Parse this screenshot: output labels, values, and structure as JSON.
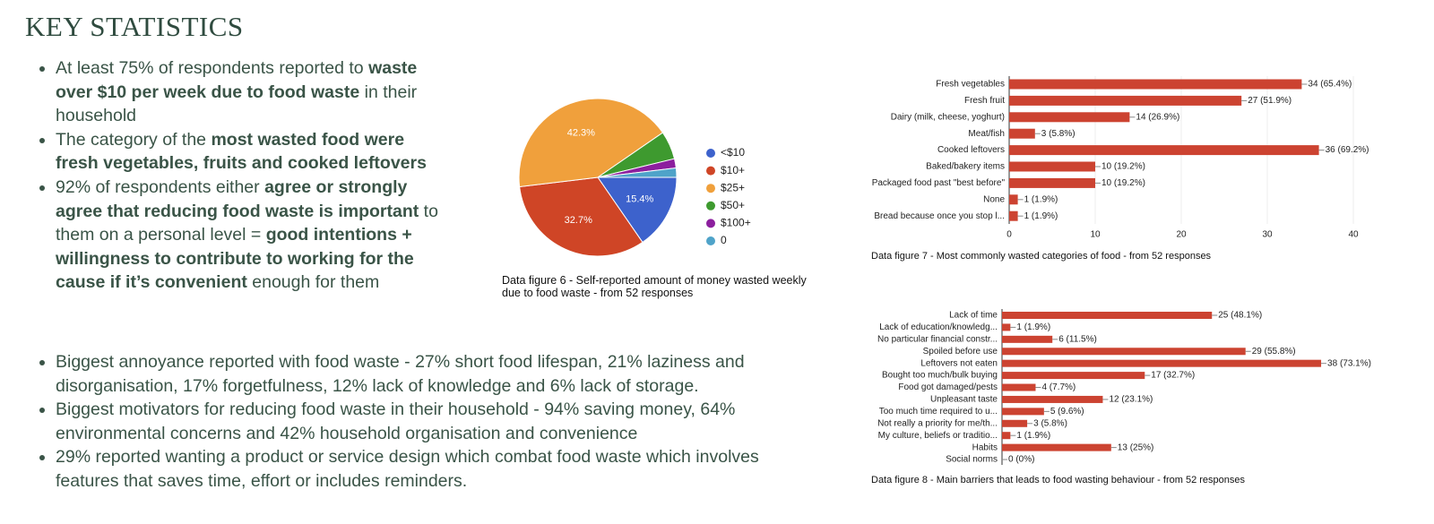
{
  "title": "KEY STATISTICS",
  "bullets": [
    [
      {
        "text": "At least 75% of respondents reported to ",
        "bold": false
      },
      {
        "text": "waste over $10 per week due to food waste",
        "bold": true
      },
      {
        "text": " in their household",
        "bold": false
      }
    ],
    [
      {
        "text": "The category of the ",
        "bold": false
      },
      {
        "text": "most wasted food were fresh vegetables, fruits and cooked leftovers",
        "bold": true
      }
    ],
    [
      {
        "text": "92% of respondents either ",
        "bold": false
      },
      {
        "text": "agree or strongly agree that reducing food waste is important",
        "bold": true
      },
      {
        "text": " to them on a personal level = ",
        "bold": false
      },
      {
        "text": "good intentions + willingness to contribute to working for the cause if it’s convenient",
        "bold": true
      },
      {
        "text": " enough for them",
        "bold": false
      }
    ],
    [
      {
        "text": "Biggest annoyance reported with food waste - 27% short food lifespan, 21% laziness and disorganisation, 17% forgetfulness, 12% lack of knowledge and 6% lack of storage.",
        "bold": false
      }
    ],
    [
      {
        "text": "Biggest motivators for reducing food waste in their household - 94% saving money, 64% environmental concerns and 42% household organisation and convenience",
        "bold": false
      }
    ],
    [
      {
        "text": "29% reported wanting a product or service design which combat food waste which involves features that saves time, effort or includes reminders.",
        "bold": false
      }
    ]
  ],
  "chart_data": [
    {
      "type": "pie",
      "caption": "Data figure 6 - Self-reported amount of money wasted weekly due to food waste - from 52 responses",
      "categories": [
        "<$10",
        "$10+",
        "$25+",
        "$50+",
        "$100+",
        "0"
      ],
      "values": [
        15.4,
        32.7,
        42.3,
        5.8,
        1.9,
        1.9
      ],
      "value_labels": [
        "15.4%",
        "32.7%",
        "42.3%",
        null,
        null,
        null
      ],
      "colors": [
        "#3d62cc",
        "#cf4526",
        "#f0a03c",
        "#3e9a2f",
        "#8c1f9e",
        "#4fa3c9"
      ]
    },
    {
      "type": "hbar",
      "caption": "Data figure 7 - Most commonly wasted categories of food - from 52 responses",
      "categories": [
        "Fresh vegetables",
        "Fresh fruit",
        "Dairy (milk, cheese, yoghurt)",
        "Meat/fish",
        "Cooked leftovers",
        "Baked/bakery items",
        "Packaged food past \"best before\"",
        "None",
        "Bread because once you stop l..."
      ],
      "values": [
        34,
        27,
        14,
        3,
        36,
        10,
        10,
        1,
        1
      ],
      "value_labels": [
        "34 (65.4%)",
        "27 (51.9%)",
        "14 (26.9%)",
        "3 (5.8%)",
        "36 (69.2%)",
        "10 (19.2%)",
        "10 (19.2%)",
        "1 (1.9%)",
        "1 (1.9%)"
      ],
      "color": "#cc4331",
      "xlim": [
        0,
        40
      ],
      "xticks": [
        0,
        10,
        20,
        30,
        40
      ]
    },
    {
      "type": "hbar",
      "caption": "Data figure 8 - Main barriers that leads to food wasting behaviour - from 52 responses",
      "categories": [
        "Lack of time",
        "Lack of education/knowledg...",
        "No particular financial constr...",
        "Spoiled before use",
        "Leftovers not eaten",
        "Bought too much/bulk buying",
        "Food got damaged/pests",
        "Unpleasant taste",
        "Too much time required to u...",
        "Not really a priority for me/th...",
        "My culture, beliefs or traditio...",
        "Habits",
        "Social norms"
      ],
      "values": [
        25,
        1,
        6,
        29,
        38,
        17,
        4,
        12,
        5,
        3,
        1,
        13,
        0
      ],
      "value_labels": [
        "25 (48.1%)",
        "1 (1.9%)",
        "6 (11.5%)",
        "29 (55.8%)",
        "38 (73.1%)",
        "17 (32.7%)",
        "4 (7.7%)",
        "12 (23.1%)",
        "5 (9.6%)",
        "3 (5.8%)",
        "1 (1.9%)",
        "13 (25%)",
        "0 (0%)"
      ],
      "color": "#cc4331"
    }
  ]
}
